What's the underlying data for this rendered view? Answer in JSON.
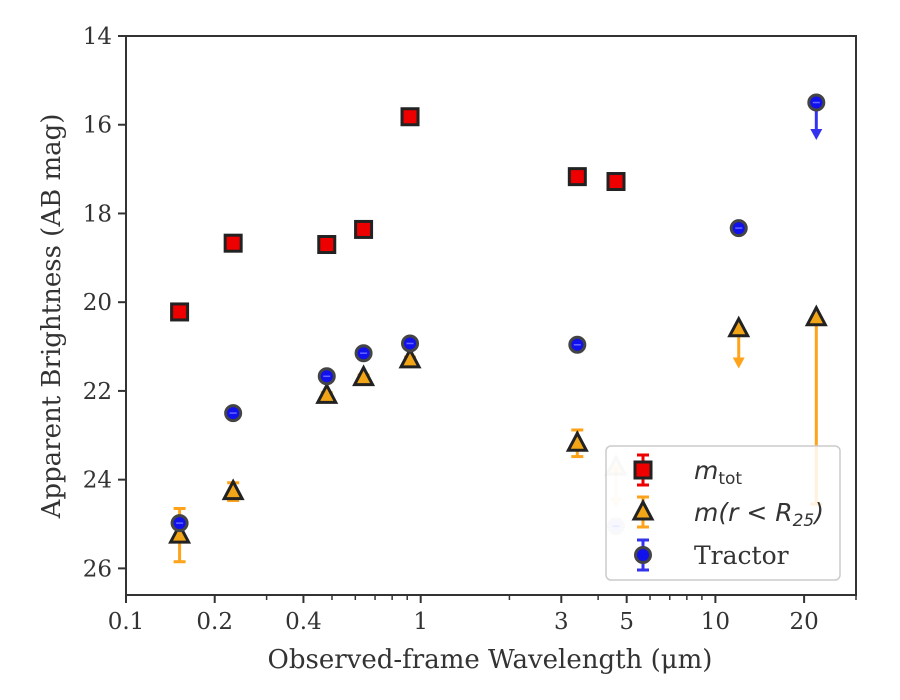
{
  "chart_data": {
    "type": "scatter",
    "xscale": "log",
    "yinverted": true,
    "xlim": [
      0.1,
      30
    ],
    "ylim": [
      26.6,
      14
    ],
    "xlabel": "Observed-frame Wavelength (μm)",
    "ylabel": "Apparent Brightness (AB mag)",
    "xticks": [
      0.1,
      0.2,
      0.4,
      1,
      3,
      5,
      10,
      20
    ],
    "xticklabels": [
      "0.1",
      "0.2",
      "0.4",
      "1",
      "3",
      "5",
      "10",
      "20"
    ],
    "yticks": [
      14,
      16,
      18,
      20,
      22,
      24,
      26
    ],
    "yticklabels": [
      "14",
      "16",
      "18",
      "20",
      "22",
      "24",
      "26"
    ],
    "legend_position": "lower-right",
    "legend_entries": [
      {
        "key": "mtot",
        "main": "m",
        "sub": "tot"
      },
      {
        "key": "m_r25",
        "prefix": "m(r < R",
        "sub": "25",
        "suffix": ")"
      },
      {
        "key": "tractor",
        "label": "Tractor"
      }
    ],
    "series": [
      {
        "key": "mtot",
        "marker": "square",
        "color": "#ee0000",
        "errcolor": "#ee0000",
        "points": [
          {
            "x": 0.152,
            "y": 20.22
          },
          {
            "x": 0.231,
            "y": 18.67
          },
          {
            "x": 0.48,
            "y": 18.7
          },
          {
            "x": 0.64,
            "y": 18.36
          },
          {
            "x": 0.92,
            "y": 15.82
          },
          {
            "x": 3.4,
            "y": 17.17
          },
          {
            "x": 4.6,
            "y": 17.28
          }
        ]
      },
      {
        "key": "m_r25",
        "marker": "triangle",
        "color": "#f2a516",
        "errcolor": "#ffa31a",
        "points": [
          {
            "x": 0.152,
            "y": 25.25,
            "err": 0.6
          },
          {
            "x": 0.231,
            "y": 24.27,
            "err": 0.2
          },
          {
            "x": 0.48,
            "y": 22.1,
            "err": 0.06
          },
          {
            "x": 0.64,
            "y": 21.7,
            "err": 0.06
          },
          {
            "x": 0.92,
            "y": 21.3,
            "err": 0.06
          },
          {
            "x": 3.4,
            "y": 23.18,
            "err": 0.3
          },
          {
            "x": 4.6,
            "y": 23.72,
            "upper": 24.6,
            "faded": true
          },
          {
            "x": 12.0,
            "y": 20.6,
            "upper": 21.45
          },
          {
            "x": 22.0,
            "y": 20.35,
            "err_lo": 0,
            "err_hi": 4.2
          }
        ]
      },
      {
        "key": "tractor",
        "marker": "circle",
        "color": "#1111ee",
        "errcolor": "#3333ee",
        "points": [
          {
            "x": 0.152,
            "y": 24.98
          },
          {
            "x": 0.231,
            "y": 22.5
          },
          {
            "x": 0.48,
            "y": 21.67
          },
          {
            "x": 0.64,
            "y": 21.15
          },
          {
            "x": 0.92,
            "y": 20.93
          },
          {
            "x": 3.4,
            "y": 20.96
          },
          {
            "x": 4.6,
            "y": 25.05,
            "faded": true
          },
          {
            "x": 12.0,
            "y": 18.33
          },
          {
            "x": 22.0,
            "y": 15.5,
            "upper": 16.3
          }
        ]
      }
    ]
  }
}
